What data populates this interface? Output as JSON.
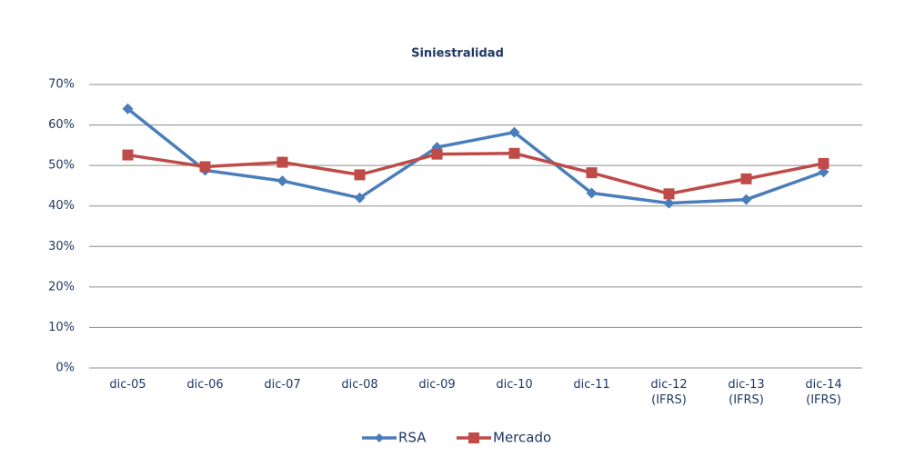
{
  "chart_data": {
    "type": "line",
    "title": "Siniestralidad",
    "categories": [
      "dic-05",
      "dic-06",
      "dic-07",
      "dic-08",
      "dic-09",
      "dic-10",
      "dic-11",
      "dic-12\n(IFRS)",
      "dic-13\n(IFRS)",
      "dic-14\n(IFRS)"
    ],
    "series": [
      {
        "name": "RSA",
        "color": "#4a7ebb",
        "marker": "diamond",
        "values": [
          64.0,
          48.8,
          46.2,
          42.0,
          54.5,
          58.2,
          43.2,
          40.7,
          41.6,
          48.4
        ]
      },
      {
        "name": "Mercado",
        "color": "#be4b48",
        "marker": "square",
        "values": [
          52.6,
          49.7,
          50.8,
          47.7,
          52.8,
          53.0,
          48.2,
          43.0,
          46.7,
          50.5
        ]
      }
    ],
    "ylim": [
      0,
      70
    ],
    "yticks": [
      {
        "value": 0,
        "label": "0%"
      },
      {
        "value": 10,
        "label": "10%"
      },
      {
        "value": 20,
        "label": "20%"
      },
      {
        "value": 30,
        "label": "30%"
      },
      {
        "value": 40,
        "label": "40%"
      },
      {
        "value": 50,
        "label": "50%"
      },
      {
        "value": 60,
        "label": "60%"
      },
      {
        "value": 70,
        "label": "70%"
      }
    ],
    "grid": true,
    "legend": "bottom"
  }
}
